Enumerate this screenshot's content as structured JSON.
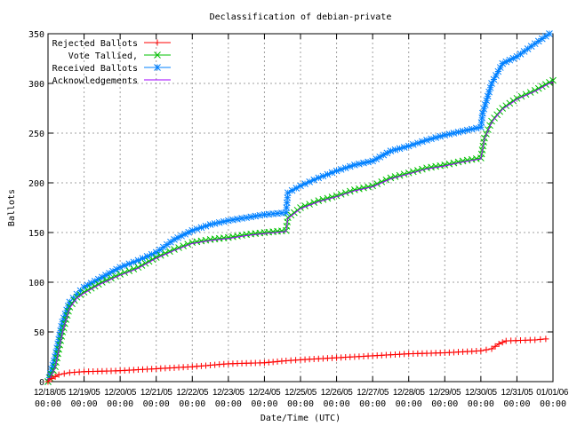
{
  "chart_data": {
    "type": "line",
    "title": "Declassification of debian-private",
    "xlabel": "Date/Time (UTC)",
    "ylabel": "Ballots",
    "ylim": [
      0,
      350
    ],
    "xlim": [
      "2005-12-18T00:00",
      "2006-01-01T00:00"
    ],
    "grid": true,
    "legend_position": "top-left",
    "yticks": [
      "0",
      "50",
      "100",
      "150",
      "200",
      "250",
      "300",
      "350"
    ],
    "xticks": [
      {
        "date": "12/18/05",
        "time": "00:00"
      },
      {
        "date": "12/19/05",
        "time": "00:00"
      },
      {
        "date": "12/20/05",
        "time": "00:00"
      },
      {
        "date": "12/21/05",
        "time": "00:00"
      },
      {
        "date": "12/22/05",
        "time": "00:00"
      },
      {
        "date": "12/23/05",
        "time": "00:00"
      },
      {
        "date": "12/24/05",
        "time": "00:00"
      },
      {
        "date": "12/25/05",
        "time": "00:00"
      },
      {
        "date": "12/26/05",
        "time": "00:00"
      },
      {
        "date": "12/27/05",
        "time": "00:00"
      },
      {
        "date": "12/28/05",
        "time": "00:00"
      },
      {
        "date": "12/29/05",
        "time": "00:00"
      },
      {
        "date": "12/30/05",
        "time": "00:00"
      },
      {
        "date": "12/31/05",
        "time": "00:00"
      },
      {
        "date": "01/01/06",
        "time": "00:00"
      }
    ],
    "series": [
      {
        "name": "Rejected Ballots",
        "color": "#ff0000",
        "marker": "plus",
        "points": [
          [
            "2005-12-18T00:00",
            0
          ],
          [
            "2005-12-18T02:24",
            3
          ],
          [
            "2005-12-18T07:12",
            7
          ],
          [
            "2005-12-18T14:24",
            9
          ],
          [
            "2005-12-19T00:00",
            10
          ],
          [
            "2005-12-20T00:00",
            11
          ],
          [
            "2005-12-21T00:00",
            13
          ],
          [
            "2005-12-22T00:00",
            15
          ],
          [
            "2005-12-23T00:00",
            18
          ],
          [
            "2005-12-24T00:00",
            19
          ],
          [
            "2005-12-24T14:24",
            21
          ],
          [
            "2005-12-25T00:00",
            22
          ],
          [
            "2005-12-26T00:00",
            24
          ],
          [
            "2005-12-27T00:00",
            26
          ],
          [
            "2005-12-28T00:00",
            28
          ],
          [
            "2005-12-29T00:00",
            29
          ],
          [
            "2005-12-30T00:00",
            31
          ],
          [
            "2005-12-30T07:12",
            33
          ],
          [
            "2005-12-30T12:00",
            38
          ],
          [
            "2005-12-30T16:48",
            41
          ],
          [
            "2005-12-31T12:00",
            42
          ],
          [
            "2005-12-31T19:12",
            43
          ]
        ]
      },
      {
        "name": "Vote Tallied,",
        "color": "#00c000",
        "marker": "x",
        "points": [
          [
            "2005-12-18T00:00",
            0
          ],
          [
            "2005-12-18T04:48",
            15
          ],
          [
            "2005-12-18T09:36",
            50
          ],
          [
            "2005-12-18T14:24",
            75
          ],
          [
            "2005-12-18T19:12",
            85
          ],
          [
            "2005-12-19T00:00",
            90
          ],
          [
            "2005-12-19T12:00",
            100
          ],
          [
            "2005-12-20T00:00",
            108
          ],
          [
            "2005-12-20T12:00",
            115
          ],
          [
            "2005-12-21T00:00",
            125
          ],
          [
            "2005-12-21T12:00",
            133
          ],
          [
            "2005-12-22T00:00",
            140
          ],
          [
            "2005-12-22T12:00",
            143
          ],
          [
            "2005-12-23T00:00",
            145
          ],
          [
            "2005-12-23T12:00",
            148
          ],
          [
            "2005-12-24T00:00",
            150
          ],
          [
            "2005-12-24T14:24",
            152
          ],
          [
            "2005-12-24T15:36",
            165
          ],
          [
            "2005-12-25T00:00",
            175
          ],
          [
            "2005-12-25T12:00",
            182
          ],
          [
            "2005-12-26T00:00",
            187
          ],
          [
            "2005-12-26T12:00",
            193
          ],
          [
            "2005-12-27T00:00",
            197
          ],
          [
            "2005-12-27T12:00",
            205
          ],
          [
            "2005-12-28T00:00",
            210
          ],
          [
            "2005-12-28T12:00",
            215
          ],
          [
            "2005-12-29T00:00",
            218
          ],
          [
            "2005-12-29T12:00",
            222
          ],
          [
            "2005-12-30T00:00",
            225
          ],
          [
            "2005-12-30T02:24",
            245
          ],
          [
            "2005-12-30T07:12",
            262
          ],
          [
            "2005-12-30T14:24",
            275
          ],
          [
            "2005-12-31T00:00",
            285
          ],
          [
            "2005-12-31T12:00",
            293
          ],
          [
            "2006-01-01T00:00",
            303
          ]
        ]
      },
      {
        "name": "Received Ballots",
        "color": "#0080ff",
        "marker": "star",
        "points": [
          [
            "2005-12-18T00:00",
            0
          ],
          [
            "2005-12-18T04:48",
            25
          ],
          [
            "2005-12-18T09:36",
            60
          ],
          [
            "2005-12-18T14:24",
            80
          ],
          [
            "2005-12-18T19:12",
            88
          ],
          [
            "2005-12-19T00:00",
            95
          ],
          [
            "2005-12-19T12:00",
            105
          ],
          [
            "2005-12-20T00:00",
            115
          ],
          [
            "2005-12-20T12:00",
            122
          ],
          [
            "2005-12-21T00:00",
            130
          ],
          [
            "2005-12-21T12:00",
            143
          ],
          [
            "2005-12-22T00:00",
            152
          ],
          [
            "2005-12-22T12:00",
            158
          ],
          [
            "2005-12-23T00:00",
            162
          ],
          [
            "2005-12-23T12:00",
            165
          ],
          [
            "2005-12-24T00:00",
            168
          ],
          [
            "2005-12-24T14:24",
            170
          ],
          [
            "2005-12-24T15:36",
            190
          ],
          [
            "2005-12-25T00:00",
            197
          ],
          [
            "2005-12-25T12:00",
            205
          ],
          [
            "2005-12-26T00:00",
            212
          ],
          [
            "2005-12-26T12:00",
            218
          ],
          [
            "2005-12-27T00:00",
            222
          ],
          [
            "2005-12-27T12:00",
            232
          ],
          [
            "2005-12-28T00:00",
            237
          ],
          [
            "2005-12-28T12:00",
            243
          ],
          [
            "2005-12-29T00:00",
            248
          ],
          [
            "2005-12-29T12:00",
            252
          ],
          [
            "2005-12-30T00:00",
            256
          ],
          [
            "2005-12-30T01:12",
            270
          ],
          [
            "2005-12-30T07:12",
            300
          ],
          [
            "2005-12-30T14:24",
            320
          ],
          [
            "2005-12-31T00:00",
            327
          ],
          [
            "2005-12-31T12:00",
            340
          ],
          [
            "2005-12-31T21:36",
            350
          ]
        ]
      },
      {
        "name": "Acknowledgements",
        "color": "#a000ff",
        "marker": "none",
        "points": [
          [
            "2005-12-18T00:00",
            0
          ],
          [
            "2005-12-18T04:48",
            14
          ],
          [
            "2005-12-18T09:36",
            49
          ],
          [
            "2005-12-18T14:24",
            74
          ],
          [
            "2005-12-18T19:12",
            84
          ],
          [
            "2005-12-19T00:00",
            89
          ],
          [
            "2005-12-19T12:00",
            99
          ],
          [
            "2005-12-20T00:00",
            107
          ],
          [
            "2005-12-20T12:00",
            114
          ],
          [
            "2005-12-21T00:00",
            124
          ],
          [
            "2005-12-21T12:00",
            132
          ],
          [
            "2005-12-22T00:00",
            139
          ],
          [
            "2005-12-22T12:00",
            142
          ],
          [
            "2005-12-23T00:00",
            144
          ],
          [
            "2005-12-23T12:00",
            147
          ],
          [
            "2005-12-24T00:00",
            149
          ],
          [
            "2005-12-24T14:24",
            151
          ],
          [
            "2005-12-24T15:36",
            164
          ],
          [
            "2005-12-25T00:00",
            174
          ],
          [
            "2005-12-25T12:00",
            181
          ],
          [
            "2005-12-26T00:00",
            186
          ],
          [
            "2005-12-26T12:00",
            192
          ],
          [
            "2005-12-27T00:00",
            196
          ],
          [
            "2005-12-27T12:00",
            204
          ],
          [
            "2005-12-28T00:00",
            209
          ],
          [
            "2005-12-28T12:00",
            214
          ],
          [
            "2005-12-29T00:00",
            217
          ],
          [
            "2005-12-29T12:00",
            221
          ],
          [
            "2005-12-30T00:00",
            224
          ],
          [
            "2005-12-30T02:24",
            244
          ],
          [
            "2005-12-30T07:12",
            261
          ],
          [
            "2005-12-30T14:24",
            274
          ],
          [
            "2005-12-31T00:00",
            284
          ],
          [
            "2005-12-31T12:00",
            292
          ],
          [
            "2006-01-01T00:00",
            302
          ]
        ]
      }
    ]
  }
}
